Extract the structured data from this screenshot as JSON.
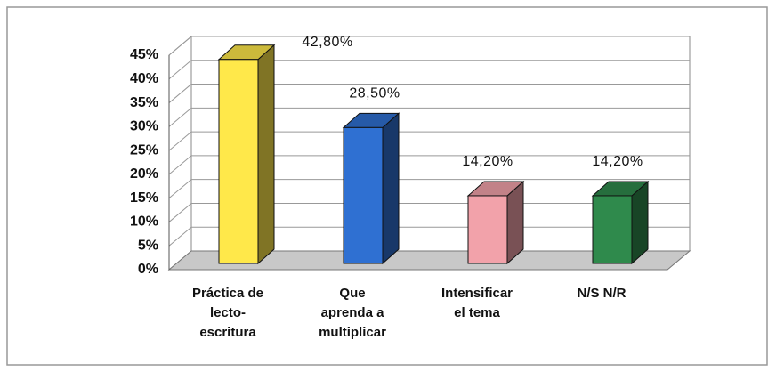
{
  "chart_data": {
    "type": "bar3d",
    "categories": [
      "Práctica de\nlecto-\nescritura",
      "Que\naprenda a\nmultiplicar",
      "Intensificar\nel tema",
      "N/S N/R"
    ],
    "values": [
      42.8,
      28.5,
      14.2,
      14.2
    ],
    "value_labels": [
      "42,80%",
      "28,50%",
      "14,20%",
      "14,20%"
    ],
    "colors": [
      "#ffe84a",
      "#2f70d2",
      "#f2a2aa",
      "#2f8a4c"
    ],
    "ylim": [
      0,
      45
    ],
    "yticks": [
      {
        "value": 0,
        "label": "0%"
      },
      {
        "value": 5,
        "label": "5%"
      },
      {
        "value": 10,
        "label": "10%"
      },
      {
        "value": 15,
        "label": "15%"
      },
      {
        "value": 20,
        "label": "20%"
      },
      {
        "value": 25,
        "label": "25%"
      },
      {
        "value": 30,
        "label": "30%"
      },
      {
        "value": 35,
        "label": "35%"
      },
      {
        "value": 40,
        "label": "40%"
      },
      {
        "value": 45,
        "label": "45%"
      }
    ],
    "grid": true
  }
}
